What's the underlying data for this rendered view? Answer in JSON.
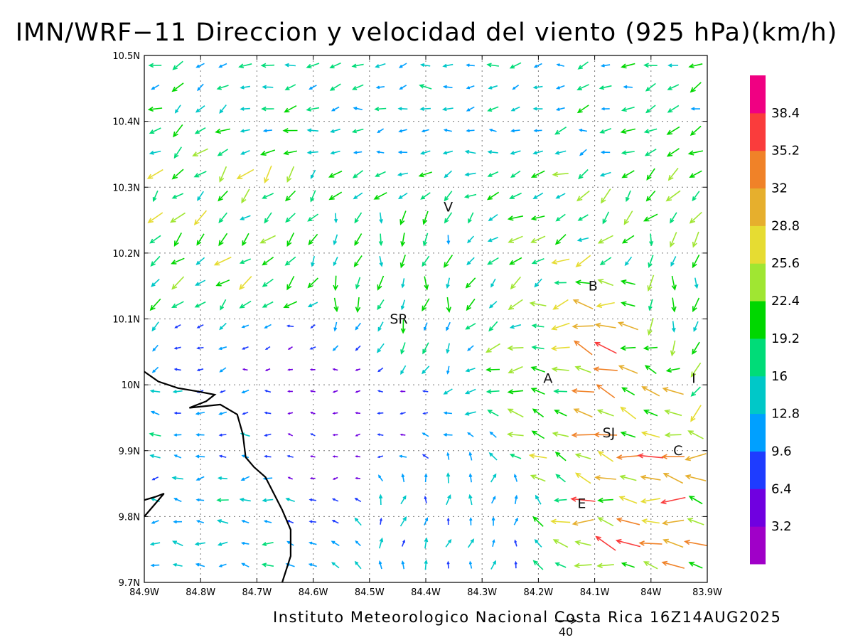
{
  "title": "IMN/WRF−11 Direccion y velocidad del viento (925 hPa)(km/h)",
  "credit": "Instituto Meteorologico Nacional Costa Rica 16Z14AUG2025",
  "chart_data": {
    "type": "vector-field",
    "x_ticks": [
      {
        "value": -84.9,
        "label": "84.9W"
      },
      {
        "value": -84.8,
        "label": "84.8W"
      },
      {
        "value": -84.7,
        "label": "84.7W"
      },
      {
        "value": -84.6,
        "label": "84.6W"
      },
      {
        "value": -84.5,
        "label": "84.5W"
      },
      {
        "value": -84.4,
        "label": "84.4W"
      },
      {
        "value": -84.3,
        "label": "84.3W"
      },
      {
        "value": -84.2,
        "label": "84.2W"
      },
      {
        "value": -84.1,
        "label": "84.1W"
      },
      {
        "value": -84.0,
        "label": "84W"
      },
      {
        "value": -83.9,
        "label": "83.9W"
      }
    ],
    "y_ticks": [
      {
        "value": 9.7,
        "label": "9.7N"
      },
      {
        "value": 9.8,
        "label": "9.8N"
      },
      {
        "value": 9.9,
        "label": "9.9N"
      },
      {
        "value": 10.0,
        "label": "10N"
      },
      {
        "value": 10.1,
        "label": "10.1N"
      },
      {
        "value": 10.2,
        "label": "10.2N"
      },
      {
        "value": 10.3,
        "label": "10.3N"
      },
      {
        "value": 10.4,
        "label": "10.4N"
      },
      {
        "value": 10.5,
        "label": "10.5N"
      }
    ],
    "xlim": [
      -84.9,
      -83.9
    ],
    "ylim": [
      9.7,
      10.5
    ],
    "grid": true,
    "colorbar": {
      "colors": [
        "#a000c8",
        "#7000e0",
        "#1e3cff",
        "#00a0ff",
        "#00c8c8",
        "#00dc78",
        "#00d700",
        "#a0e632",
        "#e6dc32",
        "#e6af2d",
        "#f08228",
        "#fa3c3c",
        "#f00082"
      ],
      "labels": [
        "3.2",
        "6.4",
        "9.6",
        "12.8",
        "16",
        "19.2",
        "22.4",
        "25.6",
        "28.8",
        "32",
        "35.2",
        "38.4"
      ],
      "range": [
        0,
        41.6
      ]
    },
    "reference_vector": {
      "label": "40",
      "speed": 40
    },
    "cities": [
      {
        "label": "V",
        "lon": -84.36,
        "lat": 10.263
      },
      {
        "label": "B",
        "lon": -84.103,
        "lat": 10.143
      },
      {
        "label": "SR",
        "lon": -84.448,
        "lat": 10.093
      },
      {
        "label": "A",
        "lon": -84.183,
        "lat": 10.003
      },
      {
        "label": "I",
        "lon": -83.924,
        "lat": 10.003
      },
      {
        "label": "SJ",
        "lon": -84.075,
        "lat": 9.92
      },
      {
        "label": "C",
        "lon": -83.952,
        "lat": 9.893
      },
      {
        "label": "E",
        "lon": -84.123,
        "lat": 9.813
      }
    ],
    "coastline": [
      [
        -84.9,
        10.02
      ],
      [
        -84.875,
        10.005
      ],
      [
        -84.84,
        9.995
      ],
      [
        -84.805,
        9.99
      ],
      [
        -84.775,
        9.985
      ],
      [
        -84.79,
        9.975
      ],
      [
        -84.82,
        9.965
      ],
      [
        -84.765,
        9.97
      ],
      [
        -84.735,
        9.955
      ],
      [
        -84.725,
        9.925
      ],
      [
        -84.72,
        9.89
      ],
      [
        -84.705,
        9.875
      ],
      [
        -84.685,
        9.86
      ],
      [
        -84.67,
        9.835
      ],
      [
        -84.655,
        9.81
      ],
      [
        -84.64,
        9.78
      ],
      [
        -84.64,
        9.74
      ],
      [
        -84.655,
        9.7
      ]
    ],
    "nicoya_tip": [
      [
        -84.9,
        9.8
      ],
      [
        -84.885,
        9.815
      ],
      [
        -84.865,
        9.835
      ],
      [
        -84.88,
        9.83
      ],
      [
        -84.9,
        9.825
      ]
    ],
    "wind_regions": [
      {
        "name": "north",
        "lat_min": 10.33,
        "lat_max": 10.5,
        "lon_min": -84.9,
        "lon_max": -83.9,
        "u": -14,
        "v": -2,
        "speed": 14
      },
      {
        "name": "northwest-jet",
        "lat_min": 10.12,
        "lat_max": 10.33,
        "lon_min": -84.88,
        "lon_max": -84.6,
        "u": -14,
        "v": -14,
        "speed": 22
      },
      {
        "name": "sarapiqui",
        "lat_min": 10.02,
        "lat_max": 10.28,
        "lon_min": -84.58,
        "lon_max": -84.32,
        "u": -2,
        "v": -15,
        "speed": 17
      },
      {
        "name": "central-west",
        "lat_min": 9.85,
        "lat_max": 10.1,
        "lon_min": -84.88,
        "lon_max": -84.3,
        "u": -8,
        "v": 0,
        "speed": 5
      },
      {
        "name": "pacific",
        "lat_min": 9.7,
        "lat_max": 10.0,
        "lon_min": -84.9,
        "lon_max": -84.66,
        "u": -15,
        "v": 0,
        "speed": 13
      },
      {
        "name": "south",
        "lat_min": 9.7,
        "lat_max": 9.88,
        "lon_min": -84.5,
        "lon_max": -84.2,
        "u": 3,
        "v": 13,
        "speed": 12
      },
      {
        "name": "valle-central",
        "lat_min": 9.86,
        "lat_max": 10.18,
        "lon_min": -84.15,
        "lon_max": -83.95,
        "u": -18,
        "v": 8,
        "speed": 28
      },
      {
        "name": "cartago-east",
        "lat_min": 9.74,
        "lat_max": 9.92,
        "lon_min": -84.12,
        "lon_max": -83.9,
        "u": -24,
        "v": 4,
        "speed": 30
      },
      {
        "name": "caribbean-slope",
        "lat_min": 9.95,
        "lat_max": 10.25,
        "lon_min": -84.0,
        "lon_max": -83.9,
        "u": -2,
        "v": -18,
        "speed": 18
      }
    ]
  }
}
